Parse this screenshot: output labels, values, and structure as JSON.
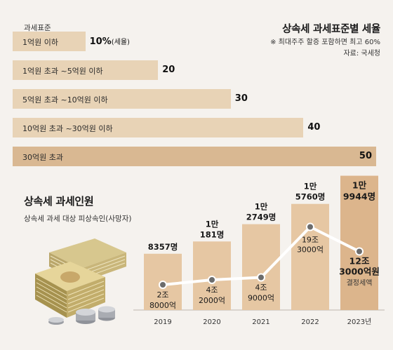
{
  "colors": {
    "background": "#f5f2ee",
    "bar_light": "#e8d3b6",
    "bar_dark": "#d9b892",
    "col_fill": "#e6c7a3",
    "col_fill_dark": "#dcb58c",
    "line": "#ffffff",
    "marker": "#6c6c6c"
  },
  "chart_data": [
    {
      "type": "bar",
      "orientation": "horizontal",
      "title": "상속세 과세표준별 세율",
      "note": "※ 최대주주 할증 포함하면 최고 60%",
      "source": "자료: 국세청",
      "category_label": "과세표준",
      "categories": [
        "1억원 이하",
        "1억원 초과 ~5억원 이하",
        "5억원 초과 ~10억원 이하",
        "10억원 초과 ~30억원 이하",
        "30억원 초과"
      ],
      "values": [
        10,
        20,
        30,
        40,
        50
      ],
      "value_labels": [
        "10%",
        "20",
        "30",
        "40",
        "50"
      ],
      "first_value_unit": "(세율)",
      "xlim": [
        0,
        50
      ]
    },
    {
      "type": "bar",
      "title": "상속세 과세인원",
      "subtitle": "상속세 과세 대상 피상속인(사망자)",
      "categories": [
        "2019",
        "2020",
        "2021",
        "2022",
        "2023년"
      ],
      "series": [
        {
          "values": [
            8357,
            10181,
            12749,
            15760,
            19944
          ],
          "labels": [
            [
              "8357명"
            ],
            [
              "1만",
              "181명"
            ],
            [
              "1만",
              "2749명"
            ],
            [
              "1만",
              "5760명"
            ],
            [
              "1만",
              "9944명"
            ]
          ]
        },
        {
          "name": "결정세액",
          "type": "line",
          "values": [
            2.8,
            4.2,
            4.9,
            19.3,
            12.3
          ],
          "labels": [
            [
              "2조",
              "8000억"
            ],
            [
              "4조",
              "2000억"
            ],
            [
              "4조",
              "9000억"
            ],
            [
              "19조",
              "3000억"
            ],
            [
              "12조",
              "3000억원"
            ]
          ]
        }
      ],
      "ylim": [
        0,
        20000
      ]
    }
  ],
  "inheritance": {
    "title": "상속세 과세인원",
    "subtitle": "상속세 과세 대상 피상속인(사망자)"
  }
}
